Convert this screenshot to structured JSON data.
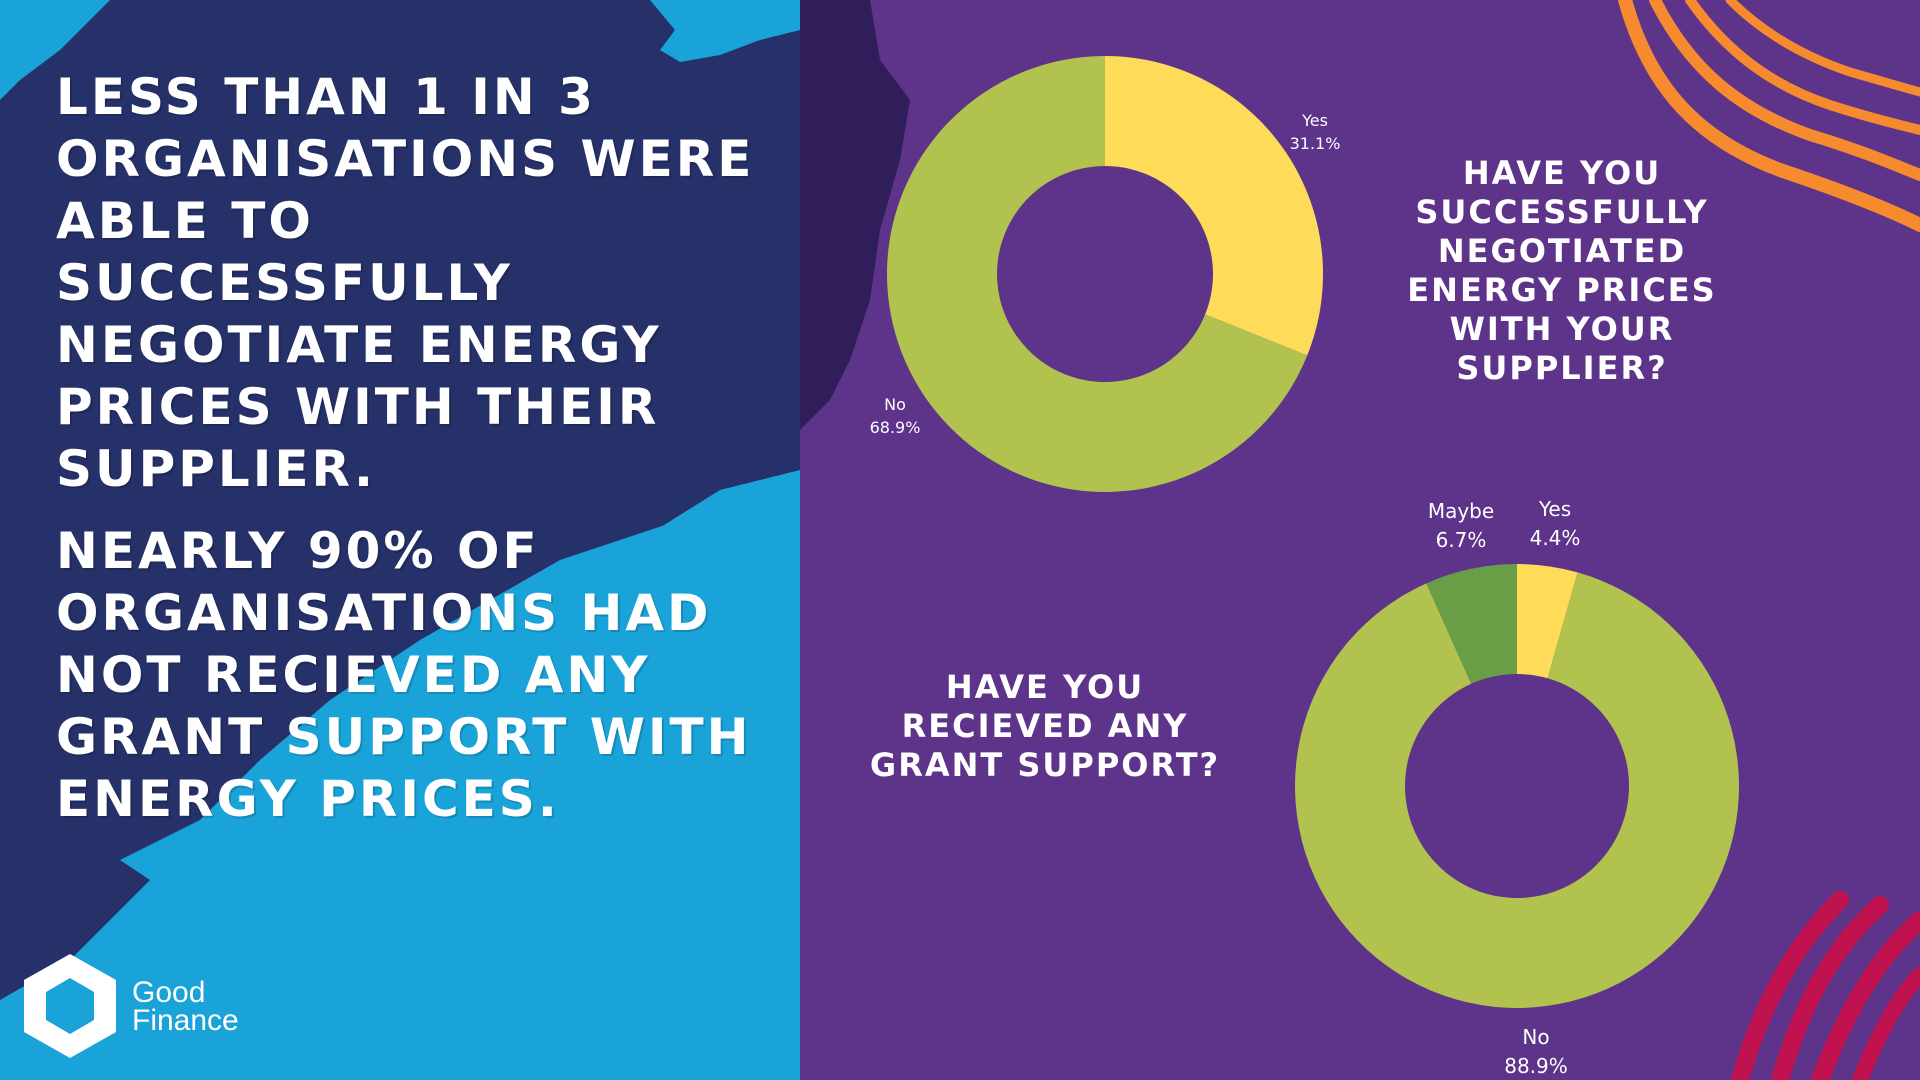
{
  "headlines": {
    "first": "Less than 1 in 3 organisations were able to successfully negotiate energy prices with their supplier.",
    "second": "Nearly 90% of organisations had not recieved any grant support with energy prices."
  },
  "logo": {
    "line1": "Good",
    "line2": "Finance"
  },
  "colors": {
    "background_purple": "#5e338a",
    "navy_panel": "#253168",
    "cyan_panel": "#1aa3d8",
    "dark_patch": "#2f1e5a",
    "orange_stripes": "#f58a2e",
    "crimson_stripes": "#c0124f",
    "yes": "#ffdb5a",
    "no": "#b2c24f",
    "maybe": "#6a9e46"
  },
  "chart_data": [
    {
      "type": "donut",
      "title": "Have you successfully negotiated energy prices with your supplier?",
      "slices": [
        {
          "label": "Yes",
          "value": 31.1,
          "display": "31.1%",
          "color": "#ffdb5a"
        },
        {
          "label": "No",
          "value": 68.9,
          "display": "68.9%",
          "color": "#b2c24f"
        }
      ]
    },
    {
      "type": "donut",
      "title": "Have you recieved any grant support?",
      "slices": [
        {
          "label": "Yes",
          "value": 4.4,
          "display": "4.4%",
          "color": "#ffdb5a"
        },
        {
          "label": "No",
          "value": 88.9,
          "display": "88.9%",
          "color": "#b2c24f"
        },
        {
          "label": "Maybe",
          "value": 6.7,
          "display": "6.7%",
          "color": "#6a9e46"
        }
      ]
    }
  ]
}
